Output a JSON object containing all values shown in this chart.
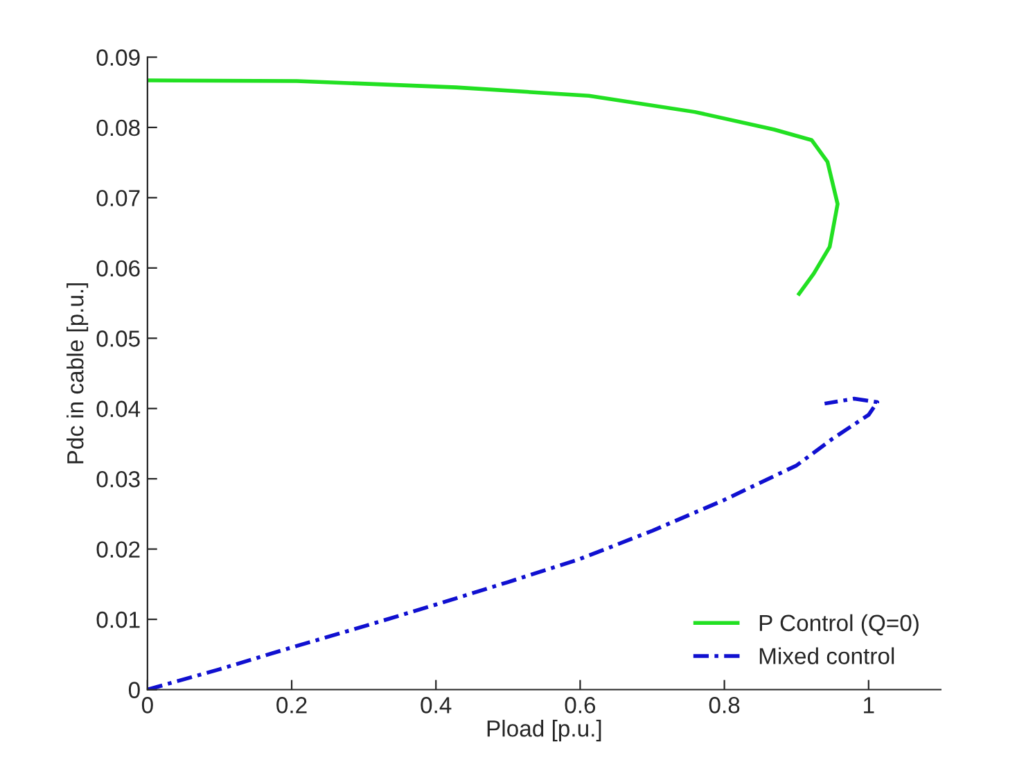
{
  "chart_data": {
    "type": "line",
    "xlabel": "Pload [p.u.]",
    "ylabel": "Pdc in cable [p.u.]",
    "xlim": [
      0,
      1.1
    ],
    "ylim": [
      0,
      0.09
    ],
    "xticks": [
      0,
      0.2,
      0.4,
      0.6,
      0.8,
      1
    ],
    "yticks": [
      0,
      0.01,
      0.02,
      0.03,
      0.04,
      0.05,
      0.06,
      0.07,
      0.08,
      0.09
    ],
    "grid": false,
    "legend": "bottom right",
    "series": [
      {
        "name": "P Control (Q=0)",
        "color": "#22e022",
        "line_style": "solid",
        "x": [
          0,
          0.207,
          0.428,
          0.612,
          0.759,
          0.869,
          0.921,
          0.943,
          0.957,
          0.946,
          0.924,
          0.902
        ],
        "values": [
          0.0867,
          0.0866,
          0.0857,
          0.0845,
          0.0822,
          0.0797,
          0.0782,
          0.0751,
          0.0691,
          0.063,
          0.0592,
          0.0561
        ]
      },
      {
        "name": "Mixed control",
        "color": "#1010d0",
        "line_style": "dashed",
        "x": [
          0,
          0.1,
          0.2,
          0.3,
          0.4,
          0.5,
          0.6,
          0.7,
          0.8,
          0.9,
          0.95,
          1.0,
          1.012,
          0.98,
          0.939
        ],
        "values": [
          0,
          0.0029,
          0.006,
          0.009,
          0.0121,
          0.0153,
          0.0186,
          0.0226,
          0.027,
          0.0319,
          0.0357,
          0.0391,
          0.0409,
          0.0414,
          0.0407
        ]
      }
    ]
  }
}
